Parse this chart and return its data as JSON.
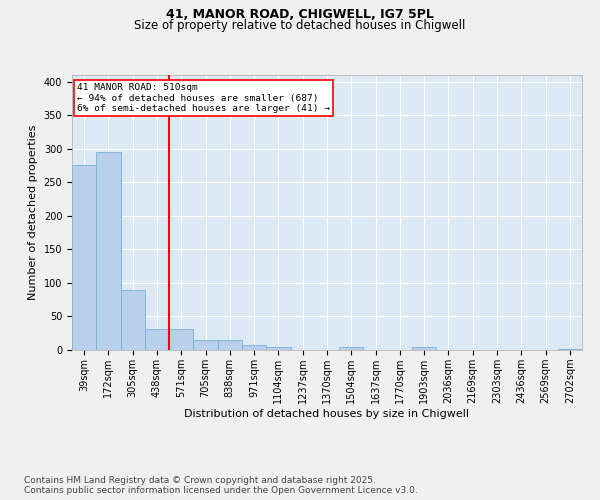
{
  "title_line1": "41, MANOR ROAD, CHIGWELL, IG7 5PL",
  "title_line2": "Size of property relative to detached houses in Chigwell",
  "xlabel": "Distribution of detached houses by size in Chigwell",
  "ylabel": "Number of detached properties",
  "categories": [
    "39sqm",
    "172sqm",
    "305sqm",
    "438sqm",
    "571sqm",
    "705sqm",
    "838sqm",
    "971sqm",
    "1104sqm",
    "1237sqm",
    "1370sqm",
    "1504sqm",
    "1637sqm",
    "1770sqm",
    "1903sqm",
    "2036sqm",
    "2169sqm",
    "2303sqm",
    "2436sqm",
    "2569sqm",
    "2702sqm"
  ],
  "values": [
    276,
    295,
    90,
    32,
    32,
    15,
    15,
    7,
    5,
    0,
    0,
    5,
    0,
    0,
    5,
    0,
    0,
    0,
    0,
    0,
    2
  ],
  "bar_color": "#b8d0eb",
  "bar_edge_color": "#7aafd4",
  "bg_color": "#dce9f5",
  "grid_color": "#ffffff",
  "vline_x": 3.5,
  "vline_color": "red",
  "annotation_text": "41 MANOR ROAD: 510sqm\n← 94% of detached houses are smaller (687)\n6% of semi-detached houses are larger (41) →",
  "annotation_box_color": "red",
  "ylim": [
    0,
    410
  ],
  "yticks": [
    0,
    50,
    100,
    150,
    200,
    250,
    300,
    350,
    400
  ],
  "footnote": "Contains HM Land Registry data © Crown copyright and database right 2025.\nContains public sector information licensed under the Open Government Licence v3.0.",
  "title_fontsize": 9,
  "subtitle_fontsize": 8.5,
  "axis_label_fontsize": 8,
  "tick_fontsize": 7,
  "footnote_fontsize": 6.5
}
